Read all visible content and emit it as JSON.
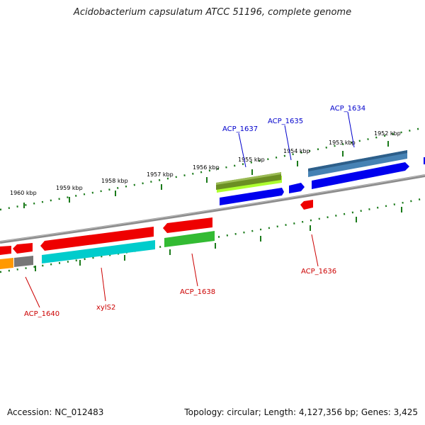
{
  "title": "Acidobacterium capsulatum ATCC 51196, complete genome",
  "footer": {
    "accession": "Accession: NC_012483",
    "topology": "Topology: circular; Length: 4,127,356 bp; Genes: 3,425"
  },
  "ticks": [
    "1960 kbp",
    "1959 kbp",
    "1958 kbp",
    "1957 kbp",
    "1956 kbp",
    "1955 kbp",
    "1954 kbp",
    "1953 kbp",
    "1952 kbp"
  ],
  "gene_labels": [
    {
      "text": "ACP_1637",
      "color": "#0000cc"
    },
    {
      "text": "ACP_1635",
      "color": "#0000cc"
    },
    {
      "text": "ACP_1634",
      "color": "#0000cc"
    },
    {
      "text": "ACP_1636",
      "color": "#cc0000"
    },
    {
      "text": "ACP_1638",
      "color": "#cc0000"
    },
    {
      "text": "xylS2",
      "color": "#cc0000"
    },
    {
      "text": "ACP_1640",
      "color": "#cc0000"
    }
  ],
  "colors": {
    "backbone": "#8c8c8c",
    "tick": "#1a7a1a",
    "red": "#ee0000",
    "blue": "#0000ee",
    "steelblue": "#4682b4",
    "cyan": "#00cccc",
    "green": "#33bb33",
    "olive": "#6b8e23",
    "lightgreen": "#adff2f",
    "orange": "#ff9900",
    "gray": "#777777"
  }
}
